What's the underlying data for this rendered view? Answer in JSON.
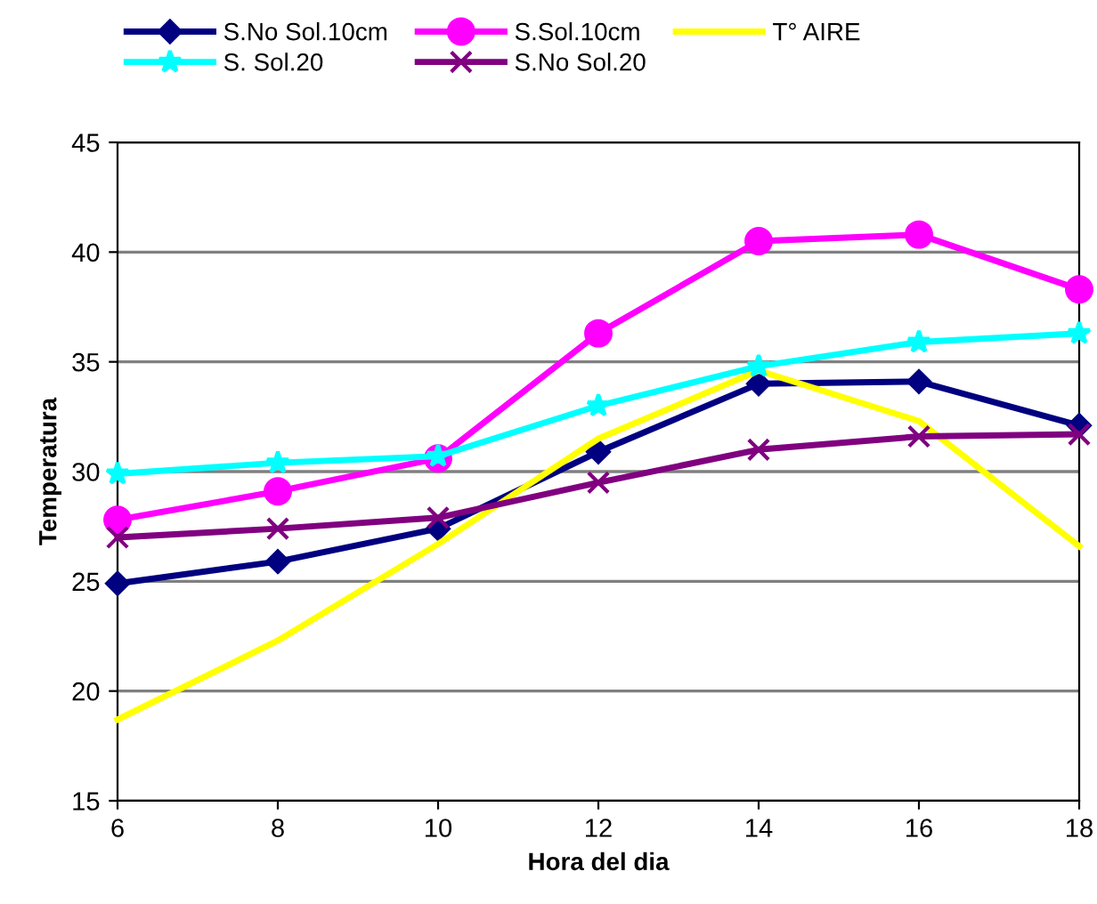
{
  "chart_data": {
    "type": "line",
    "xlabel": "Hora del dia",
    "ylabel": "Temperatura",
    "x": [
      6,
      8,
      10,
      12,
      14,
      16,
      18
    ],
    "series": [
      {
        "name": "S.No Sol.10cm",
        "color": "#000080",
        "marker": "diamond",
        "values": [
          24.9,
          25.9,
          27.4,
          30.9,
          34.0,
          34.1,
          32.1
        ]
      },
      {
        "name": "S.Sol.10cm",
        "color": "#ff00ff",
        "marker": "circle",
        "values": [
          27.8,
          29.1,
          30.6,
          36.3,
          40.5,
          40.8,
          38.3
        ]
      },
      {
        "name": "T° AIRE",
        "color": "#ffff00",
        "marker": "none",
        "values": [
          18.7,
          22.3,
          26.7,
          31.5,
          34.6,
          32.3,
          26.6
        ]
      },
      {
        "name": "S. Sol.20",
        "color": "#00ffff",
        "marker": "star",
        "values": [
          29.9,
          30.4,
          30.7,
          33.0,
          34.8,
          35.9,
          36.3
        ]
      },
      {
        "name": "S.No Sol.20",
        "color": "#800080",
        "marker": "cross",
        "values": [
          27.0,
          27.4,
          27.9,
          29.5,
          31.0,
          31.6,
          31.7
        ]
      }
    ],
    "xlim": [
      6,
      18
    ],
    "xticks": [
      6,
      8,
      10,
      12,
      14,
      16,
      18
    ],
    "ylim": [
      15,
      45
    ],
    "yticks": [
      15,
      20,
      25,
      30,
      35,
      40,
      45
    ],
    "grid": "y",
    "legend": "top",
    "line_style": "solid"
  }
}
